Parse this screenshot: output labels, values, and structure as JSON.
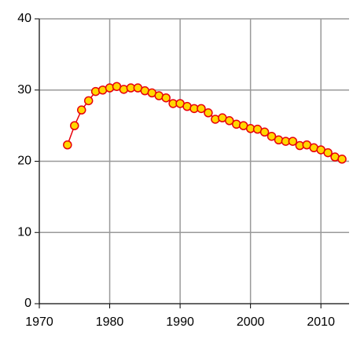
{
  "chart_data": {
    "type": "line",
    "x": [
      1974,
      1975,
      1976,
      1977,
      1978,
      1979,
      1980,
      1981,
      1982,
      1983,
      1984,
      1985,
      1986,
      1987,
      1988,
      1989,
      1990,
      1991,
      1992,
      1993,
      1994,
      1995,
      1996,
      1997,
      1998,
      1999,
      2000,
      2001,
      2002,
      2003,
      2004,
      2005,
      2006,
      2007,
      2008,
      2009,
      2010,
      2011,
      2012,
      2013
    ],
    "series": [
      {
        "color": "#e8000b",
        "marker_color": "#ffd700",
        "values": [
          22.3,
          25.0,
          27.2,
          28.5,
          29.8,
          30.0,
          30.3,
          30.5,
          30.1,
          30.3,
          30.3,
          29.9,
          29.6,
          29.2,
          28.9,
          28.1,
          28.1,
          27.7,
          27.4,
          27.4,
          26.8,
          25.9,
          26.1,
          25.7,
          25.2,
          25.0,
          24.6,
          24.5,
          24.1,
          23.5,
          23.0,
          22.8,
          22.8,
          22.2,
          22.3,
          21.9,
          21.6,
          21.2,
          20.6,
          20.3
        ]
      }
    ],
    "xlim": [
      1970,
      2014
    ],
    "xticks": [
      1970,
      1980,
      1990,
      2000,
      2010
    ],
    "ylim": [
      0,
      40
    ],
    "yticks": [
      0,
      10,
      20,
      30,
      40
    ],
    "grid": true
  }
}
